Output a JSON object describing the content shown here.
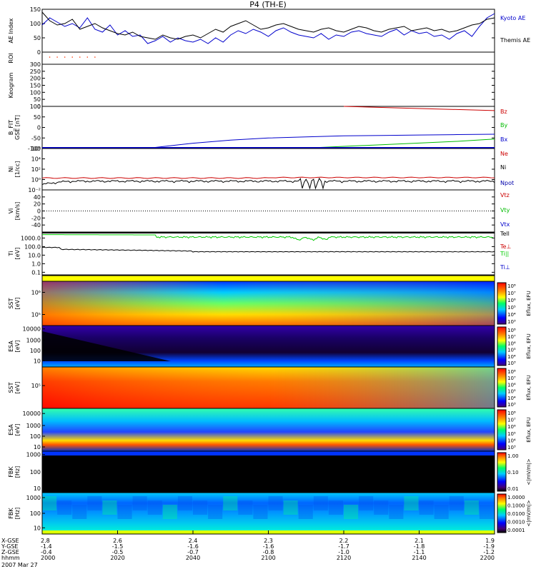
{
  "title": "P4 (TH-E)",
  "colors": {
    "kyoto": "#0000cc",
    "themis": "#000000",
    "bz": "#cc0000",
    "by": "#00bb00",
    "bx": "#0000cc",
    "ne": "#cc0000",
    "ni": "#000000",
    "npot": "#0000aa",
    "teperp": "#cc0000",
    "tipar": "#00cc00",
    "tiperp": "#0000cc",
    "roi": "#ff3300",
    "yellow_band": "#ffff00"
  },
  "x_axis": {
    "range": [
      "20:00",
      "22:00"
    ],
    "ticks": [
      {
        "x_label": "2000",
        "row1": "2.8",
        "row2": "-1.4",
        "row3": "-0.4"
      },
      {
        "x_label": "2020",
        "row1": "2.6",
        "row2": "-1.5",
        "row3": "-0.5"
      },
      {
        "x_label": "2040",
        "row1": "2.4",
        "row2": "-1.6",
        "row3": "-0.7"
      },
      {
        "x_label": "2100",
        "row1": "2.3",
        "row2": "-1.6",
        "row3": "-0.8"
      },
      {
        "x_label": "2120",
        "row1": "2.2",
        "row2": "-1.7",
        "row3": "-1.0"
      },
      {
        "x_label": "2140",
        "row1": "2.1",
        "row2": "-1.8",
        "row3": "-1.1"
      },
      {
        "x_label": "2200",
        "row1": "1.9",
        "row2": "-1.9",
        "row3": "-1.2"
      }
    ],
    "row_labels": [
      "X-GSE",
      "Y-GSE",
      "Z-GSE",
      "hhmm"
    ],
    "date": "2007 Mar 27"
  },
  "chart_data": [
    {
      "type": "line",
      "ylabel": "AE Index",
      "ylim": [
        0,
        150
      ],
      "ticks": [
        "0",
        "50",
        "100",
        "150"
      ],
      "series": [
        {
          "name": "Kyoto AE",
          "color_key": "kyoto",
          "x": [
            0,
            2,
            4,
            6,
            8,
            10,
            12,
            14,
            16,
            18,
            20,
            22,
            24,
            26,
            28,
            30,
            32,
            34,
            36,
            38,
            40,
            42,
            44,
            46,
            48,
            50,
            52,
            54,
            56,
            58,
            60,
            62,
            64,
            66,
            68,
            70,
            72,
            74,
            76,
            78,
            80,
            82,
            84,
            86,
            88,
            90,
            92,
            94,
            96,
            98,
            100,
            102,
            104,
            106,
            108,
            110,
            112,
            114,
            116,
            118,
            120
          ],
          "values": [
            95,
            120,
            105,
            90,
            100,
            85,
            120,
            80,
            70,
            95,
            60,
            75,
            55,
            60,
            30,
            40,
            55,
            35,
            50,
            40,
            35,
            45,
            30,
            50,
            35,
            60,
            75,
            65,
            80,
            70,
            55,
            75,
            85,
            70,
            60,
            55,
            50,
            65,
            45,
            60,
            55,
            70,
            75,
            65,
            60,
            55,
            70,
            80,
            60,
            75,
            65,
            70,
            55,
            60,
            45,
            65,
            75,
            55,
            90,
            120,
            135
          ]
        },
        {
          "name": "Themis AE",
          "color_key": "themis",
          "x": [
            0,
            2,
            4,
            6,
            8,
            10,
            12,
            14,
            16,
            18,
            20,
            22,
            24,
            26,
            28,
            30,
            32,
            34,
            36,
            38,
            40,
            42,
            44,
            46,
            48,
            50,
            52,
            54,
            56,
            58,
            60,
            62,
            64,
            66,
            68,
            70,
            72,
            74,
            76,
            78,
            80,
            82,
            84,
            86,
            88,
            90,
            92,
            94,
            96,
            98,
            100,
            102,
            104,
            106,
            108,
            110,
            112,
            114,
            116,
            118,
            120
          ],
          "values": [
            140,
            110,
            95,
            100,
            115,
            80,
            90,
            100,
            85,
            75,
            65,
            60,
            70,
            55,
            50,
            45,
            60,
            50,
            45,
            55,
            60,
            50,
            65,
            80,
            70,
            90,
            100,
            110,
            95,
            80,
            85,
            95,
            100,
            90,
            80,
            75,
            70,
            80,
            85,
            75,
            70,
            80,
            90,
            85,
            75,
            70,
            80,
            85,
            90,
            75,
            80,
            85,
            75,
            80,
            70,
            75,
            85,
            95,
            100,
            115,
            120
          ]
        }
      ]
    },
    {
      "type": "scatter",
      "ylabel": "ROI",
      "series": [
        {
          "name": "",
          "color_key": "roi",
          "x": [
            2,
            4,
            6,
            8,
            10,
            12,
            14
          ],
          "values": [
            1,
            1,
            1,
            1,
            1,
            1,
            1
          ]
        }
      ]
    },
    {
      "type": "heatmap",
      "ylabel": "Keogram",
      "ylim": [
        0,
        300
      ],
      "ticks": [
        "0",
        "50",
        "100",
        "150",
        "200",
        "250",
        "300"
      ]
    },
    {
      "type": "line",
      "ylabel": "B_FIT",
      "yunit": "GSE [nT]",
      "ylim": [
        -100,
        100
      ],
      "ticks": [
        "-100",
        "-50",
        "0",
        "50",
        "100"
      ],
      "series": [
        {
          "name": "Bz",
          "color_key": "bz",
          "x": [
            80,
            90,
            100,
            110,
            120
          ],
          "values": [
            100,
            95,
            90,
            85,
            80
          ]
        },
        {
          "name": "By",
          "color_key": "by",
          "x": [
            60,
            70,
            80,
            90,
            100,
            110,
            120
          ],
          "values": [
            -100,
            -98,
            -90,
            -82,
            -74,
            -66,
            -55
          ]
        },
        {
          "name": "Bx",
          "color_key": "bx",
          "x": [
            0,
            10,
            20,
            30,
            40,
            50,
            60,
            70,
            80,
            90,
            100,
            110,
            120
          ],
          "values": [
            -105,
            -105,
            -104,
            -95,
            -75,
            -60,
            -50,
            -45,
            -40,
            -38,
            -36,
            -34,
            -32
          ]
        }
      ]
    },
    {
      "type": "line",
      "ylabel": "Ni",
      "yunit": "[1/cc]",
      "scale": "log",
      "ylim": [
        0.01,
        1000000
      ],
      "ticks": [
        "10^-2",
        "10^0",
        "10^2",
        "10^4",
        "10^6"
      ],
      "series": [
        {
          "name": "Ne",
          "color_key": "ne",
          "x": [
            0,
            120
          ],
          "values": [
            2,
            3
          ]
        },
        {
          "name": "Ni",
          "color_key": "ni",
          "x": [
            0,
            10,
            20,
            40,
            60,
            70,
            80,
            100,
            120
          ],
          "values": [
            0.1,
            0.4,
            0.5,
            0.5,
            0.6,
            0.7,
            0.6,
            0.7,
            0.8
          ]
        },
        {
          "name": "Npot",
          "color_key": "npot",
          "x": [],
          "values": []
        }
      ]
    },
    {
      "type": "line",
      "ylabel": "Vi",
      "yunit": "[km/s]",
      "ylim": [
        -60,
        60
      ],
      "ticks": [
        "-40",
        "-20",
        "0",
        "20",
        "40"
      ],
      "series": [
        {
          "name": "Vtz",
          "color_key": "ne",
          "x": [],
          "values": []
        },
        {
          "name": "Vty",
          "color_key": "by",
          "x": [],
          "values": []
        },
        {
          "name": "Vtx",
          "color_key": "bx",
          "x": [],
          "values": []
        }
      ]
    },
    {
      "type": "line",
      "ylabel": "Ti",
      "yunit": "[eV]",
      "scale": "log",
      "ylim": [
        0.05,
        5000
      ],
      "ticks": [
        "0.1",
        "1.0",
        "10.0",
        "100.0",
        "1000.0"
      ],
      "series": [
        {
          "name": "Tell",
          "color_key": "ni",
          "x": [],
          "values": []
        },
        {
          "name": "Te⊥",
          "color_key": "teperp",
          "x": [],
          "values": []
        },
        {
          "name": "Ti||",
          "color_key": "tipar",
          "x": [
            0,
            20,
            40,
            60,
            70,
            75,
            80,
            100,
            120
          ],
          "values": [
            2500,
            2500,
            1500,
            1200,
            1000,
            500,
            1200,
            1300,
            1000
          ]
        },
        {
          "name": "Ti⊥",
          "color_key": "tiperp",
          "x": [
            0,
            10,
            20,
            40,
            60,
            80,
            100,
            120
          ],
          "values": [
            80,
            60,
            40,
            30,
            20,
            22,
            20,
            20
          ]
        }
      ]
    },
    {
      "type": "heatmap",
      "ylabel": "SST",
      "yunit": "[eV]",
      "ticks": [
        "10^6",
        "10^5"
      ],
      "colorbar": {
        "label": "Eflux, EFU",
        "ticks": [
          "10^8",
          "10^7",
          "10^6",
          "10^5",
          "10^4",
          "10^3"
        ]
      }
    },
    {
      "type": "heatmap",
      "ylabel": "ESA",
      "yunit": "[eV]",
      "ticks": [
        "10",
        "100",
        "1000",
        "10000"
      ],
      "colorbar": {
        "label": "Eflux, EFU",
        "ticks": [
          "10^8",
          "10^7",
          "10^6",
          "10^5",
          "10^4",
          "10^3"
        ]
      }
    },
    {
      "type": "heatmap",
      "ylabel": "SST",
      "yunit": "[eV]",
      "ticks": [
        "10^5"
      ],
      "colorbar": {
        "label": "Eflux, EFU",
        "ticks": [
          "10^8",
          "10^7",
          "10^6",
          "10^5",
          "10^4",
          "10^3"
        ]
      }
    },
    {
      "type": "heatmap",
      "ylabel": "ESA",
      "yunit": "[eV]",
      "ticks": [
        "10",
        "100",
        "1000",
        "10000"
      ],
      "colorbar": {
        "label": "Eflux, EFU",
        "ticks": [
          "10^8",
          "10^7",
          "10^6",
          "10^5",
          "10^4",
          "10^3"
        ]
      }
    },
    {
      "type": "heatmap",
      "ylabel": "FBK",
      "yunit": "[Hz]",
      "ticks": [
        "10",
        "100",
        "1000"
      ],
      "colorbar": {
        "label": "<|mV/m|>",
        "ticks": [
          "1.00",
          "0.10",
          "0.01"
        ]
      }
    },
    {
      "type": "heatmap",
      "ylabel": "FBK",
      "yunit": "[Hz]",
      "ticks": [
        "10",
        "100",
        "1000"
      ],
      "colorbar": {
        "label": "<|mV/m|>",
        "ticks": [
          "1.0000",
          "0.1000",
          "0.0100",
          "0.0010",
          "0.0001"
        ]
      }
    }
  ]
}
